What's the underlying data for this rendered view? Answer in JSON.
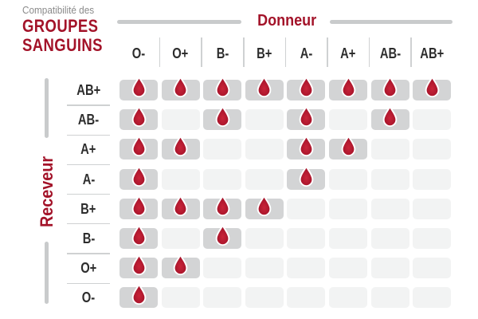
{
  "title": {
    "kicker": "Compatibilité des",
    "line1": "GROUPES",
    "line2": "SANGUINS"
  },
  "axes": {
    "donor_label": "Donneur",
    "receiver_label": "Receveur"
  },
  "chart_data": {
    "type": "table",
    "title": "Compatibilité des GROUPES SANGUINS",
    "xlabel": "Donneur",
    "ylabel": "Receveur",
    "columns": [
      "O-",
      "O+",
      "B-",
      "B+",
      "A-",
      "A+",
      "AB-",
      "AB+"
    ],
    "rows": [
      "AB+",
      "AB-",
      "A+",
      "A-",
      "B+",
      "B-",
      "O+",
      "O-"
    ],
    "matrix": [
      [
        1,
        1,
        1,
        1,
        1,
        1,
        1,
        1
      ],
      [
        1,
        0,
        1,
        0,
        1,
        0,
        1,
        0
      ],
      [
        1,
        1,
        0,
        0,
        1,
        1,
        0,
        0
      ],
      [
        1,
        0,
        0,
        0,
        1,
        0,
        0,
        0
      ],
      [
        1,
        1,
        1,
        1,
        0,
        0,
        0,
        0
      ],
      [
        1,
        0,
        1,
        0,
        0,
        0,
        0,
        0
      ],
      [
        1,
        1,
        0,
        0,
        0,
        0,
        0,
        0
      ],
      [
        1,
        0,
        0,
        0,
        0,
        0,
        0,
        0
      ]
    ],
    "true_marker_icon": "blood-drop-icon",
    "legend_position": "none",
    "grid": false
  },
  "colors": {
    "red": "#a31329",
    "drop_light": "#c92439",
    "drop_dark": "#9c0f26",
    "cell_filled": "#d3d4d5",
    "cell_empty": "#f2f3f3",
    "line_cap": "#c9cbcc",
    "line_sep": "#cfd1d2",
    "dark_text": "#2d2d2d",
    "gray_text": "#8a8a8a",
    "background": "#ffffff"
  }
}
